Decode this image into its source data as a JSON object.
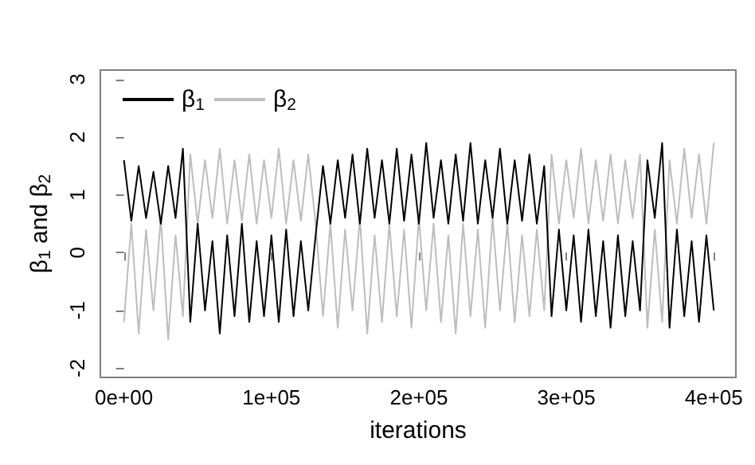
{
  "chart_data": {
    "type": "line",
    "xlabel": "iterations",
    "ylabel": "β$_{1}$ and β$_{2}$",
    "x": [
      0,
      5000,
      10000,
      15000,
      20000,
      25000,
      30000,
      35000,
      40000,
      45000,
      50000,
      55000,
      60000,
      65000,
      70000,
      75000,
      80000,
      85000,
      90000,
      95000,
      100000,
      105000,
      110000,
      115000,
      120000,
      125000,
      130000,
      135000,
      140000,
      145000,
      150000,
      155000,
      160000,
      165000,
      170000,
      175000,
      180000,
      185000,
      190000,
      195000,
      200000,
      205000,
      210000,
      215000,
      220000,
      225000,
      230000,
      235000,
      240000,
      245000,
      250000,
      255000,
      260000,
      265000,
      270000,
      275000,
      280000,
      285000,
      290000,
      295000,
      300000,
      305000,
      310000,
      315000,
      320000,
      325000,
      330000,
      335000,
      340000,
      345000,
      350000,
      355000,
      360000,
      365000,
      370000,
      375000,
      380000,
      385000,
      390000,
      395000,
      400000
    ],
    "series": [
      {
        "name": "β$_{1}$",
        "color": "#000000",
        "values": [
          1.6,
          0.55,
          1.5,
          0.6,
          1.4,
          0.5,
          1.5,
          0.6,
          1.8,
          -1.2,
          0.5,
          -1.0,
          0.2,
          -1.4,
          0.3,
          -1.1,
          0.5,
          -1.2,
          0.2,
          -1.1,
          0.3,
          -1.2,
          0.4,
          -1.1,
          0.2,
          -1.0,
          0.3,
          1.5,
          0.5,
          1.6,
          0.6,
          1.7,
          0.5,
          1.8,
          0.6,
          1.6,
          0.5,
          1.8,
          0.55,
          1.7,
          0.5,
          1.9,
          0.6,
          1.6,
          0.5,
          1.7,
          0.55,
          1.9,
          0.5,
          1.6,
          0.6,
          1.8,
          0.5,
          1.6,
          0.55,
          1.7,
          0.5,
          1.5,
          -1.1,
          0.4,
          -1.0,
          0.3,
          -1.2,
          0.4,
          -1.1,
          0.2,
          -1.3,
          0.3,
          -1.1,
          0.2,
          -1.0,
          1.6,
          0.6,
          1.9,
          -1.3,
          0.4,
          -1.1,
          0.2,
          -1.2,
          0.3,
          -1.0
        ]
      },
      {
        "name": "β$_{2}$",
        "color": "#bdbdbd",
        "values": [
          -1.2,
          0.5,
          -1.4,
          0.4,
          -1.0,
          0.6,
          -1.5,
          0.3,
          -1.1,
          1.7,
          0.5,
          1.6,
          0.6,
          1.8,
          0.5,
          1.6,
          0.55,
          1.7,
          0.5,
          1.6,
          0.6,
          1.8,
          0.5,
          1.6,
          0.55,
          1.7,
          0.5,
          -1.1,
          0.5,
          -1.3,
          0.4,
          -1.0,
          0.6,
          -1.4,
          0.3,
          -1.2,
          0.5,
          -1.1,
          0.4,
          -1.3,
          0.6,
          -1.0,
          0.5,
          -1.2,
          0.3,
          -1.4,
          0.5,
          -1.1,
          0.4,
          -1.3,
          0.6,
          -1.0,
          0.5,
          -1.2,
          0.3,
          -1.1,
          0.4,
          -1.0,
          1.7,
          0.5,
          1.6,
          0.6,
          1.8,
          0.5,
          1.6,
          0.55,
          1.7,
          0.5,
          1.6,
          0.6,
          1.7,
          -1.3,
          0.4,
          -1.2,
          1.6,
          0.5,
          1.8,
          0.6,
          1.7,
          0.5,
          1.9
        ]
      }
    ],
    "xlim": [
      -16000,
      415000
    ],
    "xticks": [
      {
        "value": 0,
        "label": "0e+00"
      },
      {
        "value": 100000,
        "label": "1e+05"
      },
      {
        "value": 200000,
        "label": "2e+05"
      },
      {
        "value": 300000,
        "label": "3e+05"
      },
      {
        "value": 400000,
        "label": "4e+05"
      }
    ],
    "ylim": [
      -2.16,
      3.16
    ],
    "yticks": [
      -2,
      -1,
      0,
      1,
      2,
      3
    ],
    "grid": false,
    "legend": "top left",
    "marker": "none",
    "line_style": "solid"
  }
}
